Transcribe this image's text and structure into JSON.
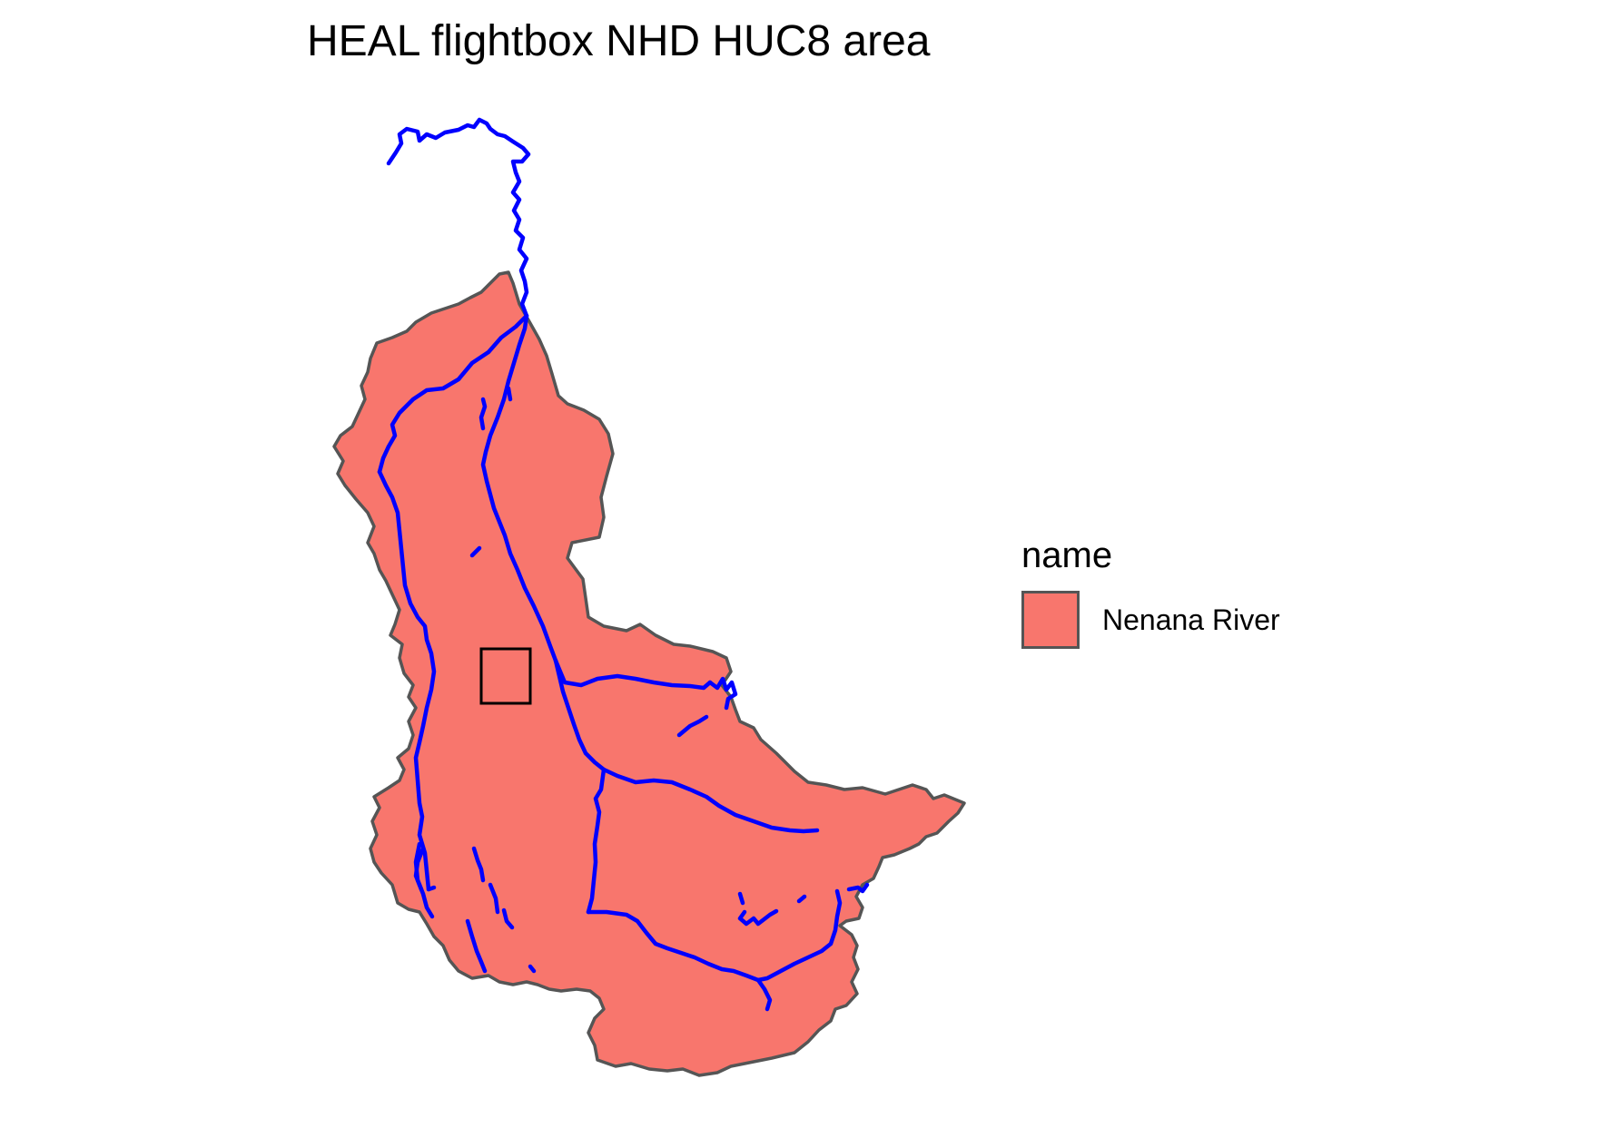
{
  "map": {
    "title": "HEAL flightbox NHD HUC8 area"
  },
  "legend": {
    "title": "name",
    "items": [
      {
        "label": "Nenana River",
        "color": "#F8766D"
      }
    ]
  },
  "colors": {
    "watershed_fill": "#F8766D",
    "watershed_border": "#555555",
    "flowlines": "#0000FF",
    "flightbox": "#000000"
  }
}
